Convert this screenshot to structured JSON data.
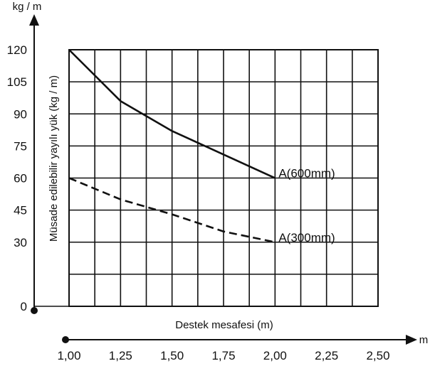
{
  "chart_data": {
    "type": "line",
    "ylabel": "Müsade edilebilir yayılı yük (kg / m)",
    "xlabel": "Destek mesafesi (m)",
    "y_unit": "kg / m",
    "x_unit": "m",
    "xlim": [
      1.0,
      2.5
    ],
    "ylim": [
      0,
      120
    ],
    "x_ticks": [
      "1,00",
      "1,25",
      "1,50",
      "1,75",
      "2,00",
      "2,25",
      "2,50"
    ],
    "y_ticks": [
      "0",
      "30",
      "45",
      "60",
      "75",
      "90",
      "105",
      "120"
    ],
    "grid": true,
    "series": [
      {
        "name": "A(600mm)",
        "style": "solid",
        "x": [
          1.0,
          1.25,
          1.5,
          1.75,
          2.0
        ],
        "y": [
          120,
          96,
          82,
          71,
          60
        ]
      },
      {
        "name": "A(300mm)",
        "style": "dashed",
        "x": [
          1.0,
          1.25,
          1.5,
          1.75,
          2.0
        ],
        "y": [
          60,
          50,
          43,
          35,
          30
        ]
      }
    ]
  }
}
